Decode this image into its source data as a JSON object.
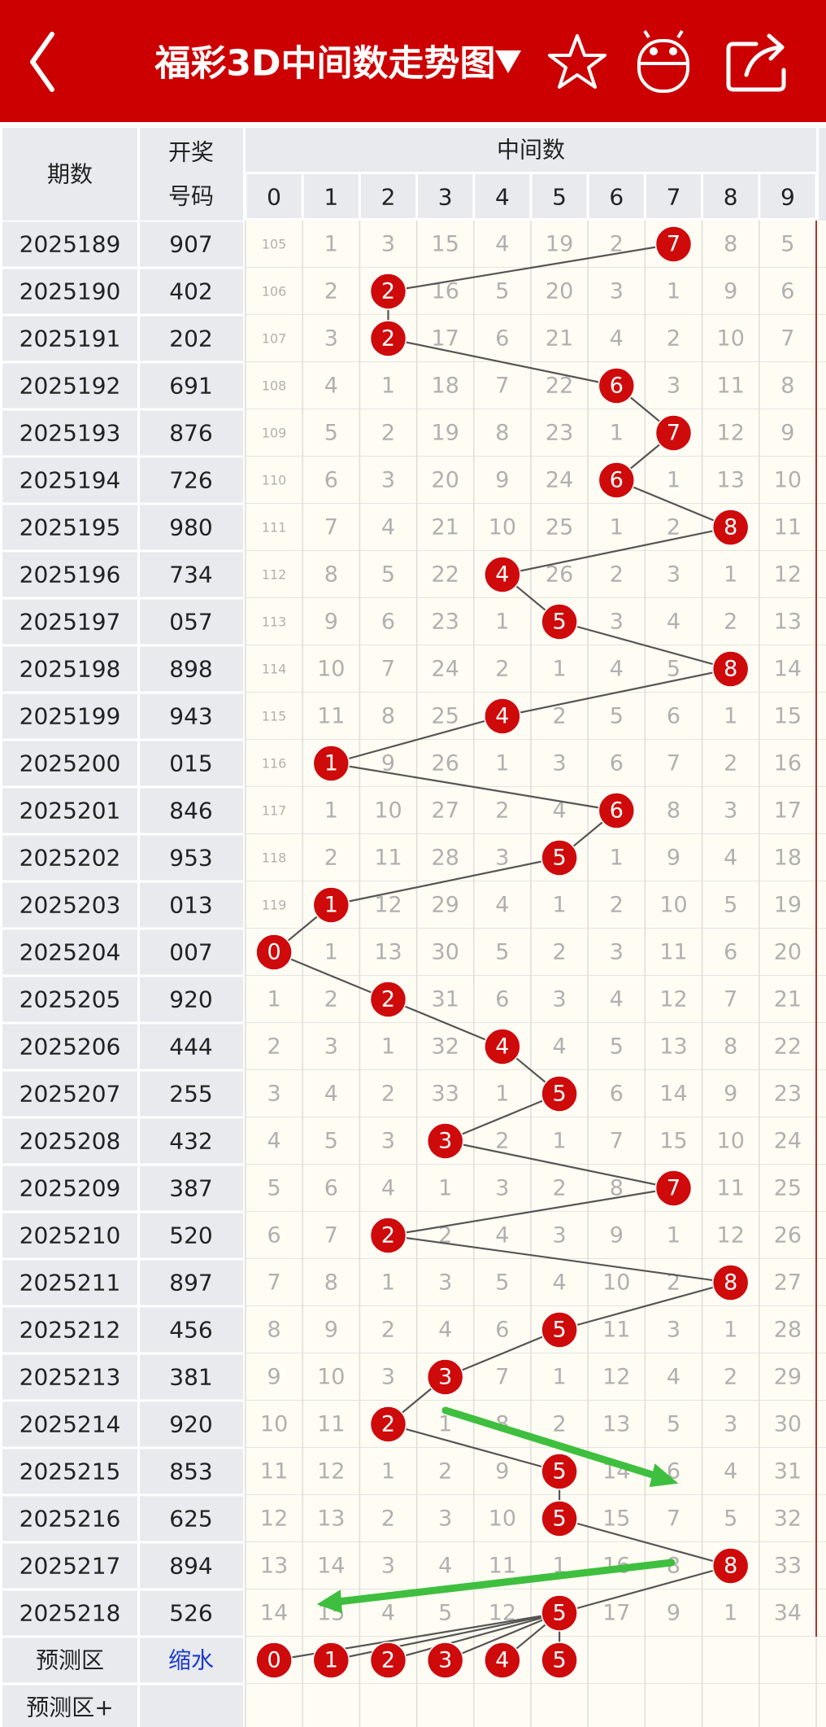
{
  "header": {
    "title": "福彩3D中间数走势图"
  },
  "table": {
    "period_label": "期数",
    "number_label": [
      "开奖",
      "号码"
    ],
    "group_label": "中间数",
    "digits": [
      "0",
      "1",
      "2",
      "3",
      "4",
      "5",
      "6",
      "7",
      "8",
      "9"
    ],
    "rows": [
      {
        "period": "2025189",
        "number": "907",
        "cells": [
          105,
          1,
          3,
          15,
          4,
          19,
          2,
          7,
          8,
          5
        ]
      },
      {
        "period": "2025190",
        "number": "402",
        "cells": [
          106,
          2,
          2,
          16,
          5,
          20,
          3,
          1,
          9,
          6
        ]
      },
      {
        "period": "2025191",
        "number": "202",
        "cells": [
          107,
          3,
          2,
          17,
          6,
          21,
          4,
          2,
          10,
          7
        ]
      },
      {
        "period": "2025192",
        "number": "691",
        "cells": [
          108,
          4,
          1,
          18,
          7,
          22,
          6,
          3,
          11,
          8
        ]
      },
      {
        "period": "2025193",
        "number": "876",
        "cells": [
          109,
          5,
          2,
          19,
          8,
          23,
          1,
          7,
          12,
          9
        ]
      },
      {
        "period": "2025194",
        "number": "726",
        "cells": [
          110,
          6,
          3,
          20,
          9,
          24,
          6,
          1,
          13,
          10
        ]
      },
      {
        "period": "2025195",
        "number": "980",
        "cells": [
          111,
          7,
          4,
          21,
          10,
          25,
          1,
          2,
          8,
          11
        ]
      },
      {
        "period": "2025196",
        "number": "734",
        "cells": [
          112,
          8,
          5,
          22,
          4,
          26,
          2,
          3,
          1,
          12
        ]
      },
      {
        "period": "2025197",
        "number": "057",
        "cells": [
          113,
          9,
          6,
          23,
          1,
          5,
          3,
          4,
          2,
          13
        ]
      },
      {
        "period": "2025198",
        "number": "898",
        "cells": [
          114,
          10,
          7,
          24,
          2,
          1,
          4,
          5,
          8,
          14
        ]
      },
      {
        "period": "2025199",
        "number": "943",
        "cells": [
          115,
          11,
          8,
          25,
          4,
          2,
          5,
          6,
          1,
          15
        ]
      },
      {
        "period": "2025200",
        "number": "015",
        "cells": [
          116,
          1,
          9,
          26,
          1,
          3,
          6,
          7,
          2,
          16
        ]
      },
      {
        "period": "2025201",
        "number": "846",
        "cells": [
          117,
          1,
          10,
          27,
          2,
          4,
          6,
          8,
          3,
          17
        ]
      },
      {
        "period": "2025202",
        "number": "953",
        "cells": [
          118,
          2,
          11,
          28,
          3,
          5,
          1,
          9,
          4,
          18
        ]
      },
      {
        "period": "2025203",
        "number": "013",
        "cells": [
          119,
          1,
          12,
          29,
          4,
          1,
          2,
          10,
          5,
          19
        ]
      },
      {
        "period": "2025204",
        "number": "007",
        "cells": [
          0,
          1,
          13,
          30,
          5,
          2,
          3,
          11,
          6,
          20
        ]
      },
      {
        "period": "2025205",
        "number": "920",
        "cells": [
          1,
          2,
          2,
          31,
          6,
          3,
          4,
          12,
          7,
          21
        ]
      },
      {
        "period": "2025206",
        "number": "444",
        "cells": [
          2,
          3,
          1,
          32,
          4,
          4,
          5,
          13,
          8,
          22
        ]
      },
      {
        "period": "2025207",
        "number": "255",
        "cells": [
          3,
          4,
          2,
          33,
          1,
          5,
          6,
          14,
          9,
          23
        ]
      },
      {
        "period": "2025208",
        "number": "432",
        "cells": [
          4,
          5,
          3,
          3,
          2,
          1,
          7,
          15,
          10,
          24
        ]
      },
      {
        "period": "2025209",
        "number": "387",
        "cells": [
          5,
          6,
          4,
          1,
          3,
          2,
          8,
          7,
          11,
          25
        ]
      },
      {
        "period": "2025210",
        "number": "520",
        "cells": [
          6,
          7,
          2,
          2,
          4,
          3,
          9,
          1,
          12,
          26
        ]
      },
      {
        "period": "2025211",
        "number": "897",
        "cells": [
          7,
          8,
          1,
          3,
          5,
          4,
          10,
          2,
          8,
          27
        ]
      },
      {
        "period": "2025212",
        "number": "456",
        "cells": [
          8,
          9,
          2,
          4,
          6,
          5,
          11,
          3,
          1,
          28
        ]
      },
      {
        "period": "2025213",
        "number": "381",
        "cells": [
          9,
          10,
          3,
          3,
          7,
          1,
          12,
          4,
          2,
          29
        ]
      },
      {
        "period": "2025214",
        "number": "920",
        "cells": [
          10,
          11,
          2,
          1,
          8,
          2,
          13,
          5,
          3,
          30
        ]
      },
      {
        "period": "2025215",
        "number": "853",
        "cells": [
          11,
          12,
          1,
          2,
          9,
          5,
          14,
          6,
          4,
          31
        ]
      },
      {
        "period": "2025216",
        "number": "625",
        "cells": [
          12,
          13,
          2,
          3,
          10,
          5,
          15,
          7,
          5,
          32
        ]
      },
      {
        "period": "2025217",
        "number": "894",
        "cells": [
          13,
          14,
          3,
          4,
          11,
          1,
          16,
          8,
          8,
          33
        ]
      },
      {
        "period": "2025218",
        "number": "526",
        "cells": [
          14,
          15,
          4,
          5,
          12,
          5,
          17,
          9,
          1,
          34
        ]
      }
    ],
    "prediction": {
      "label": "预测区",
      "action": "缩水",
      "balls": [
        "0",
        "1",
        "2",
        "3",
        "4",
        "5"
      ]
    },
    "prediction_plus": {
      "label": "预测区+"
    }
  }
}
